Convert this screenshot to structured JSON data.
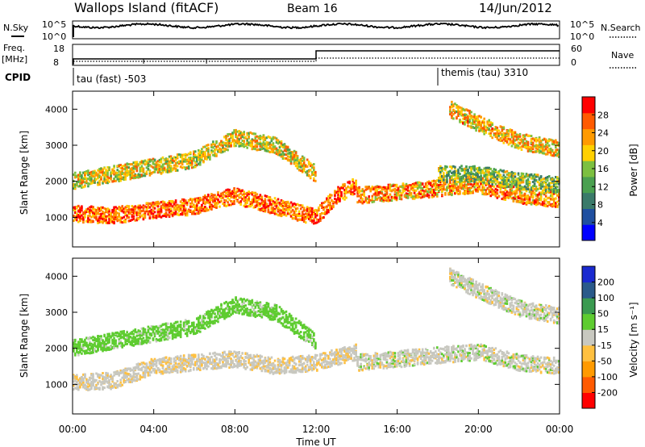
{
  "header": {
    "station": "Wallops Island (fitACF)",
    "beam": "Beam 16",
    "date": "14/Jun/2012"
  },
  "top_panels": {
    "nsky_label": "N.Sky",
    "nsky_tick_top": "10^5",
    "nsky_tick_bottom": "10^0",
    "nsearch_label": "N.Search",
    "freq_label_line1": "Freq.",
    "freq_label_line2": "[MHz]",
    "freq_tick_top": "18",
    "freq_tick_bottom": "8",
    "nave_label": "Nave",
    "nave_tick_top": "60",
    "nave_tick_bottom": "0",
    "cpid_label": "CPID",
    "cpid_segment_1": "tau (fast) -503",
    "cpid_segment_2": "themis (tau) 3310",
    "cpid_switch_hour": 18.0,
    "freq_switch_hour": 12.0
  },
  "chart_data": [
    {
      "type": "heatmap",
      "name": "power",
      "ylabel": "Slant Range [km]",
      "xlabel": "",
      "xlim": [
        0,
        24
      ],
      "ylim": [
        180,
        4500
      ],
      "yticks": [
        "1000",
        "2000",
        "3000",
        "4000"
      ],
      "colorbar": {
        "label": "Power [dB]",
        "tick_labels": [
          "4",
          "8",
          "12",
          "16",
          "20",
          "24",
          "28"
        ],
        "range": [
          0,
          30
        ],
        "colors": [
          "#0000ff",
          "#1f4fa0",
          "#3a7a6a",
          "#4aa050",
          "#7cc040",
          "#ffd000",
          "#ff9a00",
          "#ff5a00",
          "#ff0000"
        ]
      },
      "echo_bands": [
        {
          "points": [
            [
              0,
              1100
            ],
            [
              2,
              1050
            ],
            [
              4,
              1200
            ],
            [
              6,
              1300
            ],
            [
              8,
              1600
            ],
            [
              10,
              1300
            ],
            [
              12,
              1000
            ],
            [
              13,
              1600
            ],
            [
              14,
              1900
            ]
          ],
          "level": 24
        },
        {
          "points": [
            [
              0,
              2000
            ],
            [
              2,
              2200
            ],
            [
              4,
              2400
            ],
            [
              6,
              2600
            ],
            [
              8,
              3200
            ],
            [
              10,
              3000
            ],
            [
              12,
              2200
            ]
          ],
          "level": 18
        },
        {
          "points": [
            [
              14,
              1600
            ],
            [
              16,
              1700
            ],
            [
              18,
              1800
            ],
            [
              20,
              1900
            ],
            [
              22,
              1600
            ],
            [
              24,
              1500
            ]
          ],
          "level": 22
        },
        {
          "points": [
            [
              18,
              2200
            ],
            [
              20,
              2200
            ],
            [
              22,
              2000
            ],
            [
              24,
              1900
            ]
          ],
          "level": 14
        },
        {
          "points": [
            [
              18.6,
              4000
            ],
            [
              20,
              3600
            ],
            [
              22,
              3100
            ],
            [
              24,
              2900
            ]
          ],
          "level": 20
        }
      ]
    },
    {
      "type": "heatmap",
      "name": "velocity",
      "ylabel": "Slant Range [km]",
      "xlabel": "Time UT",
      "xlim": [
        0,
        24
      ],
      "ylim": [
        180,
        4500
      ],
      "xticks": [
        "00:00",
        "04:00",
        "08:00",
        "12:00",
        "16:00",
        "20:00",
        "00:00"
      ],
      "yticks": [
        "1000",
        "2000",
        "3000",
        "4000"
      ],
      "colorbar": {
        "label": "Velocity [m s⁻¹]",
        "tick_labels": [
          "-200",
          "-100",
          "-50",
          "-15",
          "15",
          "50",
          "100",
          "200"
        ],
        "colors": [
          "#ff0000",
          "#ff5a00",
          "#ff9a00",
          "#ffc040",
          "#c8c8c0",
          "#5ecc30",
          "#3a9a50",
          "#2a5a8a",
          "#1a2ad0"
        ]
      },
      "echo_bands": [
        {
          "points": [
            [
              0,
              1050
            ],
            [
              2,
              1100
            ],
            [
              4,
              1500
            ],
            [
              6,
              1600
            ],
            [
              8,
              1700
            ],
            [
              10,
              1500
            ],
            [
              12,
              1600
            ],
            [
              14,
              1900
            ]
          ],
          "velocity": -5
        },
        {
          "points": [
            [
              0,
              2000
            ],
            [
              2,
              2200
            ],
            [
              4,
              2400
            ],
            [
              6,
              2600
            ],
            [
              8,
              3200
            ],
            [
              10,
              3000
            ],
            [
              12,
              2200
            ]
          ],
          "velocity": 30
        },
        {
          "points": [
            [
              14,
              1600
            ],
            [
              16,
              1700
            ],
            [
              18,
              1800
            ],
            [
              20,
              1900
            ],
            [
              22,
              1600
            ],
            [
              24,
              1500
            ]
          ],
          "velocity": 0
        },
        {
          "points": [
            [
              18.6,
              4000
            ],
            [
              20,
              3600
            ],
            [
              22,
              3100
            ],
            [
              24,
              2900
            ]
          ],
          "velocity": 0
        }
      ]
    }
  ]
}
